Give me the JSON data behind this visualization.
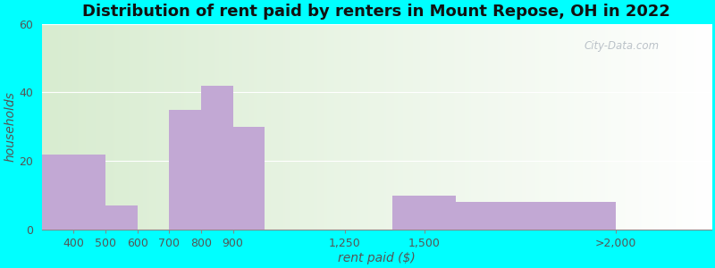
{
  "title": "Distribution of rent paid by renters in Mount Repose, OH in 2022",
  "xlabel": "rent paid ($)",
  "ylabel": "households",
  "bar_lefts": [
    300,
    500,
    600,
    700,
    800,
    900,
    1400,
    1600
  ],
  "bar_widths": [
    200,
    100,
    100,
    100,
    100,
    100,
    200,
    500
  ],
  "bar_values": [
    22,
    7,
    0,
    35,
    42,
    30,
    10,
    8
  ],
  "xtick_positions": [
    400,
    500,
    600,
    700,
    800,
    900,
    1250,
    1500,
    2100
  ],
  "xtick_labels": [
    "400",
    "500",
    "600",
    "700",
    "800",
    "900",
    "1,250",
    "1,500",
    ">2,000"
  ],
  "bar_color": "#c2a8d4",
  "cyan_bg": "#00FFFF",
  "ylim": [
    0,
    60
  ],
  "yticks": [
    0,
    20,
    40,
    60
  ],
  "xlim": [
    300,
    2400
  ],
  "title_fontsize": 13,
  "axis_label_fontsize": 10,
  "tick_fontsize": 9,
  "watermark_text": "City-Data.com"
}
